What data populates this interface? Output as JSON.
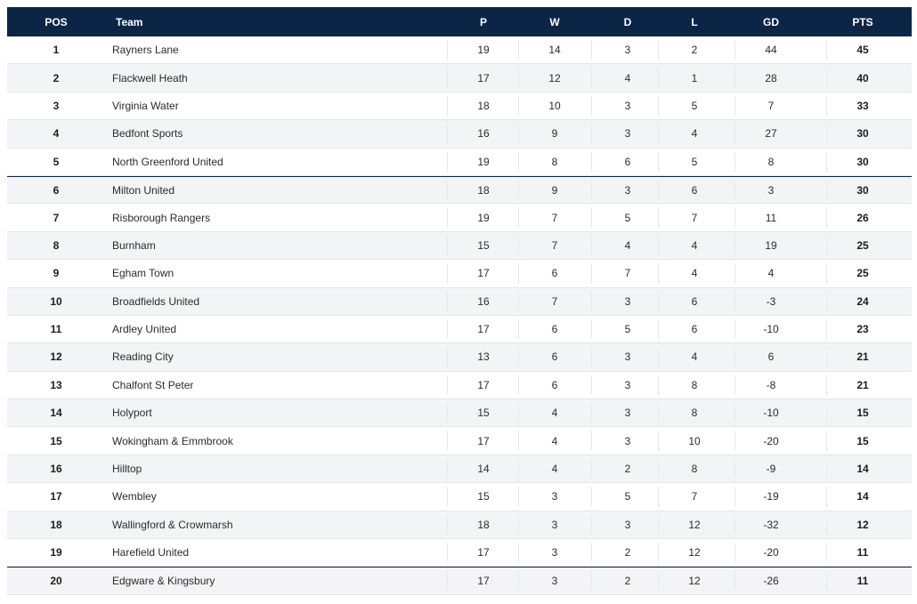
{
  "columns": {
    "pos": "POS",
    "team": "Team",
    "p": "P",
    "w": "W",
    "d": "D",
    "l": "L",
    "gd": "GD",
    "pts": "PTS"
  },
  "rows": [
    {
      "pos": "1",
      "team": "Rayners Lane",
      "p": "19",
      "w": "14",
      "d": "3",
      "l": "2",
      "gd": "44",
      "pts": "45"
    },
    {
      "pos": "2",
      "team": "Flackwell Heath",
      "p": "17",
      "w": "12",
      "d": "4",
      "l": "1",
      "gd": "28",
      "pts": "40"
    },
    {
      "pos": "3",
      "team": "Virginia Water",
      "p": "18",
      "w": "10",
      "d": "3",
      "l": "5",
      "gd": "7",
      "pts": "33"
    },
    {
      "pos": "4",
      "team": "Bedfont Sports",
      "p": "16",
      "w": "9",
      "d": "3",
      "l": "4",
      "gd": "27",
      "pts": "30"
    },
    {
      "pos": "5",
      "team": "North Greenford United",
      "p": "19",
      "w": "8",
      "d": "6",
      "l": "5",
      "gd": "8",
      "pts": "30"
    },
    {
      "pos": "6",
      "team": "Milton United",
      "p": "18",
      "w": "9",
      "d": "3",
      "l": "6",
      "gd": "3",
      "pts": "30"
    },
    {
      "pos": "7",
      "team": "Risborough Rangers",
      "p": "19",
      "w": "7",
      "d": "5",
      "l": "7",
      "gd": "11",
      "pts": "26"
    },
    {
      "pos": "8",
      "team": "Burnham",
      "p": "15",
      "w": "7",
      "d": "4",
      "l": "4",
      "gd": "19",
      "pts": "25"
    },
    {
      "pos": "9",
      "team": "Egham Town",
      "p": "17",
      "w": "6",
      "d": "7",
      "l": "4",
      "gd": "4",
      "pts": "25"
    },
    {
      "pos": "10",
      "team": "Broadfields United",
      "p": "16",
      "w": "7",
      "d": "3",
      "l": "6",
      "gd": "-3",
      "pts": "24"
    },
    {
      "pos": "11",
      "team": "Ardley United",
      "p": "17",
      "w": "6",
      "d": "5",
      "l": "6",
      "gd": "-10",
      "pts": "23"
    },
    {
      "pos": "12",
      "team": "Reading City",
      "p": "13",
      "w": "6",
      "d": "3",
      "l": "4",
      "gd": "6",
      "pts": "21"
    },
    {
      "pos": "13",
      "team": "Chalfont St Peter",
      "p": "17",
      "w": "6",
      "d": "3",
      "l": "8",
      "gd": "-8",
      "pts": "21"
    },
    {
      "pos": "14",
      "team": "Holyport",
      "p": "15",
      "w": "4",
      "d": "3",
      "l": "8",
      "gd": "-10",
      "pts": "15"
    },
    {
      "pos": "15",
      "team": "Wokingham & Emmbrook",
      "p": "17",
      "w": "4",
      "d": "3",
      "l": "10",
      "gd": "-20",
      "pts": "15"
    },
    {
      "pos": "16",
      "team": "Hilltop",
      "p": "14",
      "w": "4",
      "d": "2",
      "l": "8",
      "gd": "-9",
      "pts": "14"
    },
    {
      "pos": "17",
      "team": "Wembley",
      "p": "15",
      "w": "3",
      "d": "5",
      "l": "7",
      "gd": "-19",
      "pts": "14"
    },
    {
      "pos": "18",
      "team": "Wallingford & Crowmarsh",
      "p": "18",
      "w": "3",
      "d": "3",
      "l": "12",
      "gd": "-32",
      "pts": "12"
    },
    {
      "pos": "19",
      "team": "Harefield United",
      "p": "17",
      "w": "3",
      "d": "2",
      "l": "12",
      "gd": "-20",
      "pts": "11"
    },
    {
      "pos": "20",
      "team": "Edgware & Kingsbury",
      "p": "17",
      "w": "3",
      "d": "2",
      "l": "12",
      "gd": "-26",
      "pts": "11"
    }
  ],
  "zone_lines_after": [
    "5",
    "19"
  ],
  "colors": {
    "header_bg": "#0b2547",
    "header_text": "#ffffff",
    "zebra": "#f2f4f6",
    "zone_line": "#0b2547"
  }
}
